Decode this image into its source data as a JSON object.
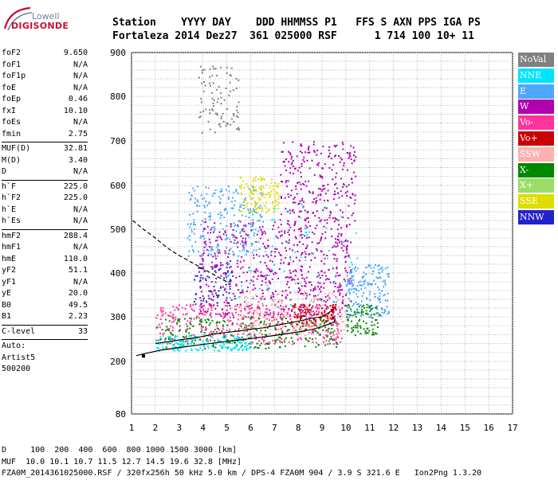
{
  "logo": {
    "line1": "Lowell",
    "line2": "DIGISONDE"
  },
  "header": {
    "line1": "Station    YYYY DAY    DDD HHMMSS P1   FFS S AXN PPS IGA PS",
    "line2": "Fortaleza 2014 Dez27  361 025000 RSF      1 714 100 10+ 11"
  },
  "params": {
    "group1": [
      {
        "name": "foF2",
        "value": "9.650"
      },
      {
        "name": "foF1",
        "value": "N/A"
      },
      {
        "name": "foF1p",
        "value": "N/A"
      },
      {
        "name": "foE",
        "value": "N/A"
      },
      {
        "name": "foEp",
        "value": "0.46"
      },
      {
        "name": "fxI",
        "value": "10.10"
      },
      {
        "name": "foEs",
        "value": "N/A"
      },
      {
        "name": "fmin",
        "value": "2.75"
      }
    ],
    "group2": [
      {
        "name": "MUF(D)",
        "value": "32.81"
      },
      {
        "name": "M(D)",
        "value": "3.40"
      },
      {
        "name": "D",
        "value": "N/A"
      }
    ],
    "group3": [
      {
        "name": "h`F",
        "value": "225.0"
      },
      {
        "name": "h`F2",
        "value": "225.0"
      },
      {
        "name": "h`E",
        "value": "N/A"
      },
      {
        "name": "h`Es",
        "value": "N/A"
      }
    ],
    "group4": [
      {
        "name": "hmF2",
        "value": "288.4"
      },
      {
        "name": "hmF1",
        "value": "N/A"
      },
      {
        "name": "hmE",
        "value": "110.0"
      },
      {
        "name": "yF2",
        "value": "51.1"
      },
      {
        "name": "yF1",
        "value": "N/A"
      },
      {
        "name": "yE",
        "value": "20.0"
      },
      {
        "name": "B0",
        "value": "49.5"
      },
      {
        "name": "B1",
        "value": "2.23"
      }
    ],
    "group5": [
      {
        "name": "C-level",
        "value": "33"
      }
    ],
    "auto": [
      "Auto:",
      "Artist5",
      "500200"
    ]
  },
  "footer": {
    "line1": "D     100  200  400  600  800 1000 1500 3000 [km]",
    "line2": "MUF  10.0 10.1 10.7 11.5 12.7 14.5 19.6 32.8 [MHz]",
    "line3": "FZA0M_2014361025000.RSF / 320fx256h 50 kHz 5.0 km / DPS-4 FZA0M 904 / 3.9 S 321.6 E   Ion2Png 1.3.20"
  },
  "legend": [
    {
      "label": "NoVal",
      "color": "#808080"
    },
    {
      "label": "NNE",
      "color": "#00e5ff"
    },
    {
      "label": "E",
      "color": "#4da6ff"
    },
    {
      "label": "W",
      "color": "#b000b0"
    },
    {
      "label": "Vo-",
      "color": "#ff3399"
    },
    {
      "label": "Vo+",
      "color": "#cc0000"
    },
    {
      "label": "SSW",
      "color": "#ffb0b0"
    },
    {
      "label": "X-",
      "color": "#008800"
    },
    {
      "label": "X+",
      "color": "#99dd66"
    },
    {
      "label": "SSE",
      "color": "#dddd00"
    },
    {
      "label": "NNW",
      "color": "#2222cc"
    }
  ],
  "chart_data": {
    "type": "scatter",
    "xlim": [
      1,
      17
    ],
    "ylim": [
      80,
      900
    ],
    "x_ticks": [
      "1",
      "2",
      "3",
      "4",
      "5",
      "6",
      "7",
      "8",
      "9",
      "10",
      "11",
      "12",
      "13",
      "14",
      "15",
      "16",
      "17"
    ],
    "y_ticks": [
      "80",
      "200",
      "300",
      "400",
      "500",
      "600",
      "700",
      "800",
      "900"
    ],
    "grid": true,
    "profile_line": {
      "x": [
        1.2,
        1.6,
        2.2,
        3.0,
        4.0,
        5.0,
        6.0,
        7.0,
        8.0,
        8.6,
        9.0,
        9.3,
        9.5,
        9.55,
        9.4
      ],
      "y": [
        213,
        218,
        225,
        231,
        238,
        245,
        251,
        258,
        266,
        272,
        278,
        284,
        288,
        295,
        300
      ]
    },
    "trace_line": {
      "x": [
        2.0,
        2.5,
        3.0,
        3.5,
        4.0,
        4.5,
        5.0,
        5.5,
        6.0,
        6.5,
        7.0,
        7.5,
        8.0,
        8.5,
        9.0,
        9.3,
        9.5
      ],
      "y": [
        240,
        244,
        248,
        252,
        256,
        262,
        265,
        268,
        272,
        275,
        280,
        285,
        290,
        296,
        300,
        310,
        318
      ]
    },
    "extrapolated_profile": {
      "x": [
        1.05,
        1.5,
        2.0,
        2.4,
        2.7,
        3.0,
        3.5,
        4.0,
        4.5,
        5.0
      ],
      "y": [
        520,
        500,
        480,
        462,
        450,
        440,
        425,
        410,
        395,
        380
      ]
    },
    "echo_regions": [
      {
        "series": "W",
        "x": [
          3.8,
          10.2
        ],
        "y": [
          300,
          520
        ],
        "density": 700
      },
      {
        "series": "W",
        "x": [
          7.2,
          10.4
        ],
        "y": [
          520,
          700
        ],
        "density": 260
      },
      {
        "series": "E",
        "x": [
          10.0,
          11.8
        ],
        "y": [
          300,
          420
        ],
        "density": 180
      },
      {
        "series": "Vo-",
        "x": [
          2.0,
          9.8
        ],
        "y": [
          240,
          330
        ],
        "density": 420
      },
      {
        "series": "X-",
        "x": [
          2.0,
          9.6
        ],
        "y": [
          230,
          300
        ],
        "density": 260
      },
      {
        "series": "SSW",
        "x": [
          5.5,
          10.0
        ],
        "y": [
          260,
          360
        ],
        "density": 200
      },
      {
        "series": "NNE",
        "x": [
          2.0,
          6.0
        ],
        "y": [
          225,
          260
        ],
        "density": 160
      },
      {
        "series": "E",
        "x": [
          3.3,
          6.5
        ],
        "y": [
          440,
          600
        ],
        "density": 220
      },
      {
        "series": "SSE",
        "x": [
          5.5,
          7.2
        ],
        "y": [
          540,
          620
        ],
        "density": 120
      },
      {
        "series": "X-",
        "x": [
          10.0,
          11.4
        ],
        "y": [
          260,
          330
        ],
        "density": 90
      },
      {
        "series": "NNW",
        "x": [
          3.6,
          5.2
        ],
        "y": [
          330,
          420
        ],
        "density": 60
      },
      {
        "series": "NoVal",
        "x": [
          3.8,
          5.5
        ],
        "y": [
          720,
          870
        ],
        "density": 90
      },
      {
        "series": "NNE",
        "x": [
          5.0,
          10.5
        ],
        "y": [
          320,
          560
        ],
        "density": 90
      },
      {
        "series": "Vo+",
        "x": [
          7.5,
          9.6
        ],
        "y": [
          280,
          330
        ],
        "density": 90
      }
    ]
  }
}
